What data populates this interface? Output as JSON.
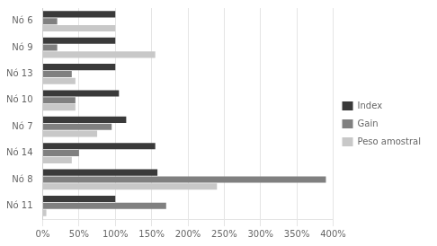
{
  "chart_data": {
    "type": "bar",
    "orientation": "horizontal",
    "categories": [
      "Nó 6",
      "Nó 9",
      "Nó 13",
      "Nó 10",
      "Nó 7",
      "Nó 14",
      "Nó 8",
      "Nó 11"
    ],
    "series": [
      {
        "name": "Index",
        "color": "#3a3a3a",
        "values": [
          1.0,
          1.0,
          1.0,
          1.05,
          1.15,
          1.55,
          1.58,
          1.0
        ]
      },
      {
        "name": "Gain",
        "color": "#808080",
        "values": [
          0.2,
          0.2,
          0.4,
          0.45,
          0.95,
          0.5,
          3.9,
          1.7
        ]
      },
      {
        "name": "Peso amostral",
        "color": "#c8c8c8",
        "values": [
          1.0,
          1.55,
          0.45,
          0.45,
          0.75,
          0.4,
          2.4,
          0.05
        ]
      }
    ],
    "xlim": [
      0.0,
      4.0
    ],
    "xticks": [
      {
        "value": 0.0,
        "label": "0%"
      },
      {
        "value": 0.5,
        "label": "50%"
      },
      {
        "value": 1.0,
        "label": "100%"
      },
      {
        "value": 1.5,
        "label": "150%"
      },
      {
        "value": 2.0,
        "label": "200%"
      },
      {
        "value": 2.5,
        "label": "250%"
      },
      {
        "value": 3.0,
        "label": "300%"
      },
      {
        "value": 3.5,
        "label": "350%"
      },
      {
        "value": 4.0,
        "label": "400%"
      }
    ],
    "grid": true,
    "legend": "right"
  }
}
